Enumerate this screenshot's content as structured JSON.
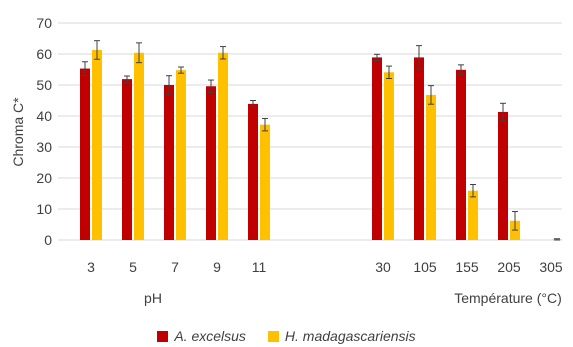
{
  "chart_data": {
    "type": "bar",
    "ylabel": "Chroma C*",
    "ylim": [
      0,
      70
    ],
    "yticks": [
      "0",
      "10",
      "20",
      "30",
      "40",
      "50",
      "60",
      "70"
    ],
    "grid": true,
    "legend_position": "bottom",
    "groups": [
      {
        "label": "pH",
        "categories": [
          "3",
          "5",
          "7",
          "9",
          "11"
        ]
      },
      {
        "label": "Température (°C)",
        "categories": [
          "30",
          "105",
          "155",
          "205",
          "305"
        ]
      }
    ],
    "series": [
      {
        "name": "A. excelsus",
        "color": "#C00000",
        "values": [
          55.3,
          51.9,
          50.0,
          49.6,
          43.9,
          58.9,
          58.9,
          54.9,
          41.3,
          0
        ],
        "errors": [
          2.2,
          1.0,
          3.0,
          2.0,
          1.1,
          1.0,
          3.8,
          1.6,
          2.8,
          0
        ]
      },
      {
        "name": "H. madagascariensis",
        "color": "#FFC000",
        "values": [
          61.3,
          60.4,
          54.8,
          60.4,
          37.2,
          54.1,
          46.8,
          15.9,
          6.2,
          0.2
        ],
        "errors": [
          3.0,
          3.2,
          1.0,
          2.0,
          2.0,
          2.0,
          3.0,
          2.0,
          3.0,
          0.2
        ]
      }
    ]
  }
}
